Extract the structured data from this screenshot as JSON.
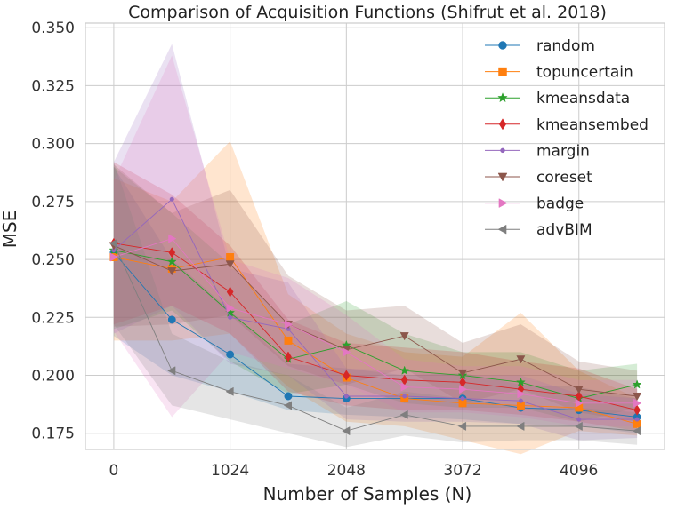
{
  "chart_data": {
    "type": "line",
    "title": "Comparison of Acquisition Functions (Shifrut et al. 2018)",
    "xlabel": "Number of Samples (N)",
    "ylabel": "MSE",
    "xlim": [
      -250,
      4850
    ],
    "ylim": [
      0.168,
      0.352
    ],
    "xticks": [
      0,
      1024,
      2048,
      3072,
      4096
    ],
    "xtick_labels": [
      "0",
      "1024",
      "2048",
      "3072",
      "4096"
    ],
    "yticks": [
      0.175,
      0.2,
      0.225,
      0.25,
      0.275,
      0.3,
      0.325,
      0.35
    ],
    "ytick_labels": [
      "0.175",
      "0.200",
      "0.225",
      "0.250",
      "0.275",
      "0.300",
      "0.325",
      "0.350"
    ],
    "grid": true,
    "legend_position": "top-right",
    "x": [
      0,
      512,
      1024,
      1536,
      2048,
      2560,
      3072,
      3584,
      4096,
      4608
    ],
    "series": [
      {
        "name": "random",
        "color": "#1f77b4",
        "marker": "circle",
        "values": [
          0.253,
          0.224,
          0.209,
          0.191,
          0.19,
          0.19,
          0.19,
          0.186,
          0.185,
          0.182
        ],
        "lower": [
          0.217,
          0.2,
          0.193,
          0.185,
          0.183,
          0.182,
          0.181,
          0.179,
          0.178,
          0.175
        ],
        "upper": [
          0.29,
          0.25,
          0.228,
          0.205,
          0.203,
          0.2,
          0.201,
          0.196,
          0.195,
          0.19
        ]
      },
      {
        "name": "topuncertain",
        "color": "#ff7f0e",
        "marker": "square",
        "values": [
          0.251,
          0.246,
          0.251,
          0.215,
          0.199,
          0.19,
          0.188,
          0.187,
          0.186,
          0.179
        ],
        "lower": [
          0.215,
          0.215,
          0.218,
          0.195,
          0.18,
          0.178,
          0.172,
          0.166,
          0.176,
          0.174
        ],
        "upper": [
          0.285,
          0.275,
          0.301,
          0.235,
          0.218,
          0.21,
          0.208,
          0.227,
          0.202,
          0.19
        ]
      },
      {
        "name": "kmeansdata",
        "color": "#2ca02c",
        "marker": "star",
        "values": [
          0.254,
          0.249,
          0.227,
          0.207,
          0.213,
          0.202,
          0.2,
          0.197,
          0.19,
          0.196
        ],
        "lower": [
          0.22,
          0.228,
          0.206,
          0.192,
          0.196,
          0.188,
          0.186,
          0.186,
          0.18,
          0.186
        ],
        "upper": [
          0.29,
          0.27,
          0.248,
          0.222,
          0.232,
          0.218,
          0.21,
          0.21,
          0.202,
          0.205
        ]
      },
      {
        "name": "kmeansembed",
        "color": "#d62728",
        "marker": "diamond",
        "values": [
          0.257,
          0.253,
          0.236,
          0.208,
          0.2,
          0.198,
          0.197,
          0.194,
          0.191,
          0.185
        ],
        "lower": [
          0.222,
          0.23,
          0.218,
          0.193,
          0.187,
          0.185,
          0.185,
          0.183,
          0.18,
          0.176
        ],
        "upper": [
          0.292,
          0.278,
          0.256,
          0.224,
          0.214,
          0.212,
          0.21,
          0.206,
          0.203,
          0.194
        ]
      },
      {
        "name": "margin",
        "color": "#9467bd",
        "marker": "point",
        "values": [
          0.254,
          0.276,
          0.225,
          0.22,
          0.191,
          0.191,
          0.19,
          0.189,
          0.181,
          0.181
        ],
        "lower": [
          0.218,
          0.23,
          0.205,
          0.2,
          0.181,
          0.18,
          0.18,
          0.179,
          0.172,
          0.173
        ],
        "upper": [
          0.292,
          0.343,
          0.246,
          0.24,
          0.203,
          0.202,
          0.2,
          0.2,
          0.192,
          0.19
        ]
      },
      {
        "name": "coreset",
        "color": "#8c564b",
        "marker": "triangle-down",
        "values": [
          0.256,
          0.245,
          0.248,
          0.222,
          0.211,
          0.217,
          0.201,
          0.207,
          0.194,
          0.191
        ],
        "lower": [
          0.221,
          0.222,
          0.226,
          0.204,
          0.196,
          0.203,
          0.188,
          0.194,
          0.184,
          0.18
        ],
        "upper": [
          0.291,
          0.27,
          0.28,
          0.243,
          0.228,
          0.23,
          0.214,
          0.222,
          0.206,
          0.202
        ]
      },
      {
        "name": "badge",
        "color": "#e377c2",
        "marker": "triangle-right",
        "values": [
          0.251,
          0.259,
          0.229,
          0.222,
          0.21,
          0.195,
          0.194,
          0.192,
          0.188,
          0.188
        ],
        "lower": [
          0.219,
          0.182,
          0.21,
          0.203,
          0.196,
          0.184,
          0.184,
          0.182,
          0.178,
          0.178
        ],
        "upper": [
          0.284,
          0.338,
          0.25,
          0.242,
          0.226,
          0.207,
          0.204,
          0.204,
          0.198,
          0.198
        ]
      },
      {
        "name": "advBIM",
        "color": "#7f7f7f",
        "marker": "triangle-left",
        "values": [
          0.257,
          0.202,
          0.193,
          0.187,
          0.176,
          0.183,
          0.178,
          0.178,
          0.178,
          0.176
        ],
        "lower": [
          0.222,
          0.187,
          0.181,
          0.175,
          0.169,
          0.174,
          0.171,
          0.172,
          0.172,
          0.17
        ],
        "upper": [
          0.292,
          0.218,
          0.206,
          0.2,
          0.186,
          0.193,
          0.19,
          0.186,
          0.186,
          0.184
        ]
      }
    ]
  }
}
